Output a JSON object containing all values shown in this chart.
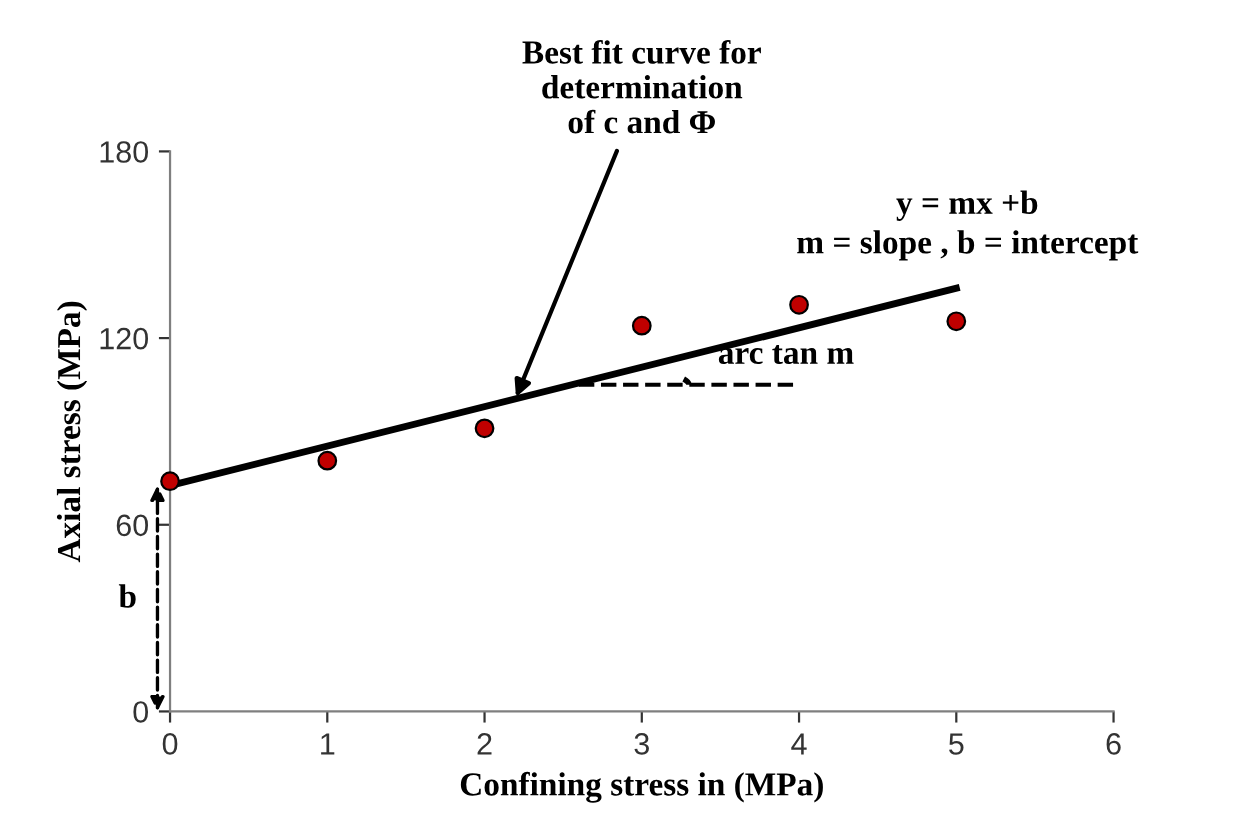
{
  "chart_data": {
    "type": "scatter",
    "xlabel": "Confining stress in (MPa)",
    "ylabel": "Axial stress (MPa)",
    "xlim": [
      0,
      6
    ],
    "xticks": [
      0,
      1,
      2,
      3,
      4,
      5,
      6
    ],
    "ylim": [
      0,
      180
    ],
    "yticks": [
      0,
      60,
      120,
      180
    ],
    "grid": false,
    "series": [
      {
        "color": "#c00000",
        "marker": "circle",
        "x": [
          0,
          1,
          2,
          3,
          4,
          5
        ],
        "values": [
          74,
          80.6,
          91,
          124,
          130.7,
          125.4
        ]
      },
      {
        "type": "line",
        "color": "#000000",
        "line_style": "solid",
        "marker": "none",
        "x": [
          0,
          5
        ],
        "values": [
          72.6,
          136
        ]
      }
    ],
    "annotations": [
      {
        "text": "Best fit curve for\ndetermination\nof c and Φ",
        "x": 2.2,
        "y": 101
      },
      "y = mx +b\nm = slope , b = intercept",
      {
        "text": "arc tan m",
        "x": 2.6,
        "y": 105
      },
      "b"
    ]
  }
}
